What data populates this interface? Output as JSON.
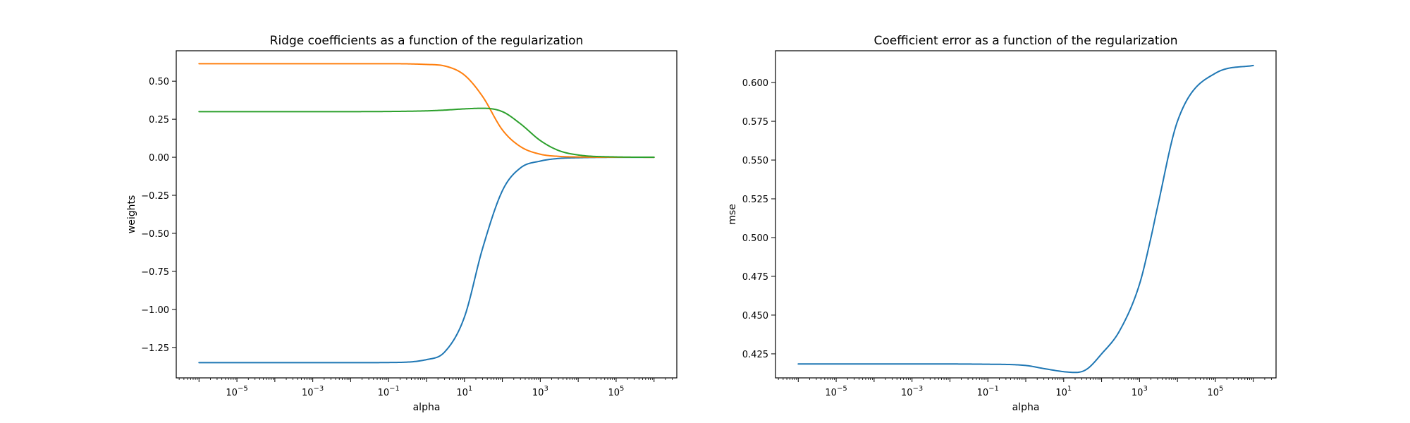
{
  "chart_data": [
    {
      "type": "line",
      "title": "Ridge coefficients as a function of the regularization",
      "xlabel": "alpha",
      "ylabel": "weights",
      "xscale": "log",
      "xlim": [
        1e-06,
        1000000.0
      ],
      "ylim": [
        -1.45,
        0.7
      ],
      "xticks": [
        {
          "exp": -5,
          "label": "10",
          "sup": "−5"
        },
        {
          "exp": -3,
          "label": "10",
          "sup": "−3"
        },
        {
          "exp": -1,
          "label": "10",
          "sup": "−1"
        },
        {
          "exp": 1,
          "label": "10",
          "sup": "1"
        },
        {
          "exp": 3,
          "label": "10",
          "sup": "3"
        },
        {
          "exp": 5,
          "label": "10",
          "sup": "5"
        }
      ],
      "yticks": [
        {
          "value": 0.5,
          "label": "0.50"
        },
        {
          "value": 0.25,
          "label": "0.25"
        },
        {
          "value": 0.0,
          "label": "0.00"
        },
        {
          "value": -0.25,
          "label": "−0.25"
        },
        {
          "value": -0.5,
          "label": "−0.50"
        },
        {
          "value": -0.75,
          "label": "−0.75"
        },
        {
          "value": -1.0,
          "label": "−1.00"
        },
        {
          "value": -1.25,
          "label": "−1.25"
        }
      ],
      "grid": false,
      "legend": "none",
      "series": [
        {
          "color": "#1f77b4",
          "x": [
            1e-06,
            0.0001,
            0.01,
            0.1,
            1,
            3,
            10,
            30,
            100,
            300,
            1000,
            3000,
            10000,
            100000,
            1000000
          ],
          "y": [
            -1.35,
            -1.35,
            -1.35,
            -1.349,
            -1.33,
            -1.28,
            -1.05,
            -0.6,
            -0.22,
            -0.07,
            -0.025,
            -0.008,
            -0.003,
            -0.0003,
            0.0
          ]
        },
        {
          "color": "#ff7f0e",
          "x": [
            1e-06,
            0.0001,
            0.01,
            0.1,
            1,
            3,
            10,
            30,
            100,
            300,
            1000,
            3000,
            10000,
            100000,
            1000000
          ],
          "y": [
            0.615,
            0.615,
            0.615,
            0.615,
            0.61,
            0.6,
            0.54,
            0.4,
            0.18,
            0.07,
            0.02,
            0.006,
            0.002,
            0.0002,
            0.0
          ]
        },
        {
          "color": "#2ca02c",
          "x": [
            1e-06,
            0.0001,
            0.01,
            0.1,
            1,
            3,
            10,
            30,
            100,
            300,
            1000,
            3000,
            10000,
            100000,
            1000000
          ],
          "y": [
            0.3,
            0.3,
            0.3,
            0.301,
            0.305,
            0.31,
            0.318,
            0.322,
            0.3,
            0.22,
            0.11,
            0.045,
            0.015,
            0.002,
            0.0
          ]
        }
      ]
    },
    {
      "type": "line",
      "title": "Coefficient error as a function of the regularization",
      "xlabel": "alpha",
      "ylabel": "mse",
      "xscale": "log",
      "xlim": [
        1e-06,
        1000000.0
      ],
      "ylim": [
        0.4095,
        0.6205
      ],
      "xticks": [
        {
          "exp": -5,
          "label": "10",
          "sup": "−5"
        },
        {
          "exp": -3,
          "label": "10",
          "sup": "−3"
        },
        {
          "exp": -1,
          "label": "10",
          "sup": "−1"
        },
        {
          "exp": 1,
          "label": "10",
          "sup": "1"
        },
        {
          "exp": 3,
          "label": "10",
          "sup": "3"
        },
        {
          "exp": 5,
          "label": "10",
          "sup": "5"
        }
      ],
      "yticks": [
        {
          "value": 0.6,
          "label": "0.600"
        },
        {
          "value": 0.575,
          "label": "0.575"
        },
        {
          "value": 0.55,
          "label": "0.550"
        },
        {
          "value": 0.525,
          "label": "0.525"
        },
        {
          "value": 0.5,
          "label": "0.500"
        },
        {
          "value": 0.475,
          "label": "0.475"
        },
        {
          "value": 0.45,
          "label": "0.450"
        },
        {
          "value": 0.425,
          "label": "0.425"
        }
      ],
      "grid": false,
      "legend": "none",
      "series": [
        {
          "color": "#1f77b4",
          "x": [
            1e-06,
            0.001,
            0.1,
            1,
            3,
            10,
            20,
            40,
            100,
            300,
            1000,
            2000,
            3000,
            10000,
            100000,
            1000000
          ],
          "y": [
            0.4185,
            0.4185,
            0.4183,
            0.4175,
            0.4155,
            0.4135,
            0.413,
            0.415,
            0.425,
            0.44,
            0.47,
            0.5,
            0.52,
            0.575,
            0.606,
            0.611
          ]
        }
      ]
    }
  ]
}
